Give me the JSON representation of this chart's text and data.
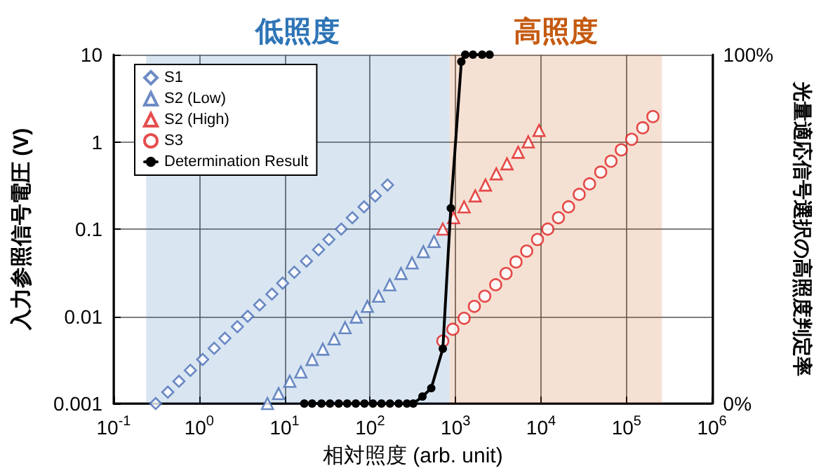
{
  "chart_data": {
    "type": "scatter",
    "xlabel": "相対照度 (arb. unit)",
    "ylabel": "入力参照信号電圧 (V)",
    "y2label": "光量適応信号選択の高照度判定率",
    "log": "xy",
    "grid": true,
    "legend": "top left",
    "xlim": [
      0.1,
      1000000
    ],
    "xticks": [
      {
        "value": 0.1,
        "label": "10$^{-1}$"
      },
      {
        "value": 1,
        "label": "10$^{0}$"
      },
      {
        "value": 10,
        "label": "10$^{1}$"
      },
      {
        "value": 100,
        "label": "10$^{2}$"
      },
      {
        "value": 1000,
        "label": "10$^{3}$"
      },
      {
        "value": 10000,
        "label": "10$^{4}$"
      },
      {
        "value": 100000,
        "label": "10$^{5}$"
      },
      {
        "value": 1000000,
        "label": "10$^{6}$"
      }
    ],
    "ylim": [
      0.001,
      10
    ],
    "yticks": [
      0.001,
      0.01,
      0.1,
      1,
      10
    ],
    "y2lim": [
      0,
      100
    ],
    "y2ticks": [
      {
        "value": 0,
        "label": "0%"
      },
      {
        "value": 100,
        "label": "100%"
      }
    ],
    "bands": [
      {
        "axis": "x",
        "from": 0.24,
        "to": 850,
        "label": "低照度",
        "color": "#2e75b6"
      },
      {
        "axis": "x",
        "from": 850,
        "to": 260000,
        "label": "高照度",
        "color": "#c55a11"
      }
    ],
    "series": [
      {
        "name": "S1",
        "marker": "diamond",
        "color": "#4a6fb5",
        "x": [
          0.31,
          0.43,
          0.58,
          0.79,
          1.1,
          1.5,
          2.0,
          2.8,
          3.7,
          5.1,
          7.1,
          9.5,
          13,
          18,
          25,
          33,
          46,
          62,
          85,
          115,
          160
        ],
        "values": [
          0.001,
          0.00135,
          0.0018,
          0.0024,
          0.0032,
          0.0043,
          0.0056,
          0.0076,
          0.01,
          0.0135,
          0.018,
          0.024,
          0.032,
          0.043,
          0.058,
          0.076,
          0.1,
          0.135,
          0.18,
          0.24,
          0.32
        ]
      },
      {
        "name": "S2 (Low)",
        "marker": "triangle",
        "color": "#4a6fb5",
        "x": [
          6.3,
          8.5,
          11.5,
          15.5,
          21,
          28,
          38,
          51,
          69,
          93,
          126,
          170,
          230,
          310,
          420,
          560
        ],
        "values": [
          0.001,
          0.0013,
          0.0018,
          0.0023,
          0.0032,
          0.0042,
          0.0055,
          0.0074,
          0.0098,
          0.013,
          0.017,
          0.023,
          0.031,
          0.041,
          0.055,
          0.072
        ]
      },
      {
        "name": "S2 (High)",
        "marker": "triangle",
        "color": "#e02020",
        "x": [
          710,
          950,
          1260,
          1700,
          2240,
          3000,
          4000,
          5400,
          7100,
          9500
        ],
        "values": [
          0.1,
          0.135,
          0.18,
          0.24,
          0.32,
          0.43,
          0.56,
          0.76,
          1.0,
          1.35
        ]
      },
      {
        "name": "S3",
        "marker": "circle",
        "color": "#e02020",
        "x": [
          710,
          930,
          1260,
          1660,
          2200,
          2950,
          3900,
          5100,
          6800,
          9100,
          12000,
          16000,
          21000,
          28000,
          37000,
          50000,
          66000,
          87000,
          115000,
          155000,
          204000
        ],
        "values": [
          0.0052,
          0.0071,
          0.0095,
          0.013,
          0.017,
          0.023,
          0.031,
          0.042,
          0.056,
          0.076,
          0.1,
          0.135,
          0.18,
          0.25,
          0.33,
          0.45,
          0.6,
          0.81,
          1.07,
          1.45,
          1.95
        ]
      },
      {
        "name": "Determination Result",
        "type": "line",
        "axis": "y2",
        "marker": "circle",
        "color": "#000000",
        "x": [
          17,
          21,
          27,
          34,
          43,
          54,
          68,
          86,
          108,
          136,
          171,
          216,
          270,
          320,
          410,
          520,
          710,
          880,
          1170,
          1300,
          1600,
          2050,
          2500
        ],
        "values": [
          0,
          0,
          0,
          0,
          0,
          0,
          0,
          0,
          0,
          0,
          0,
          0,
          0,
          0,
          2,
          4.4,
          15.7,
          56,
          98,
          100,
          100,
          100,
          100
        ]
      }
    ]
  }
}
